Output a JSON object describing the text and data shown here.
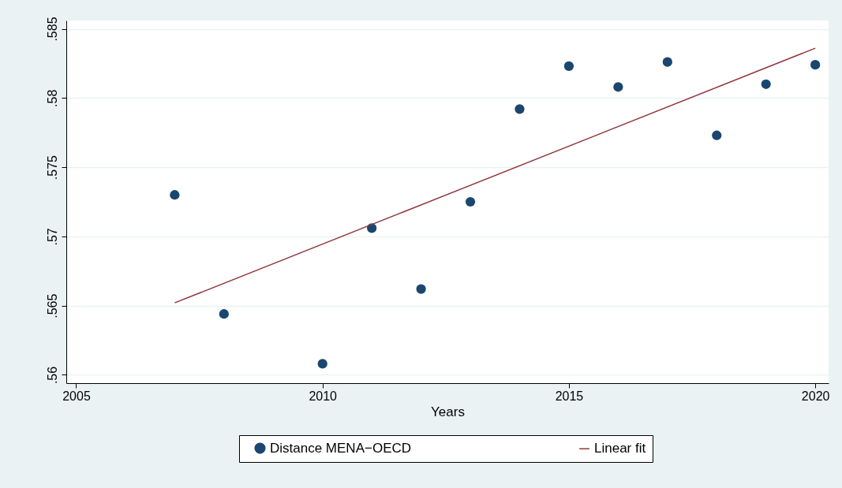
{
  "chart_data": {
    "type": "scatter",
    "xlabel": "Years",
    "grid": "y",
    "legend": "bottom",
    "xlim": [
      2004.8,
      2020.27
    ],
    "xticks": [
      2005,
      2010,
      2015,
      2020
    ],
    "ylim": [
      0.5594,
      0.5856
    ],
    "yticks": [
      {
        "value": 0.56,
        "label": ".56"
      },
      {
        "value": 0.565,
        "label": ".565"
      },
      {
        "value": 0.57,
        "label": ".57"
      },
      {
        "value": 0.575,
        "label": ".575"
      },
      {
        "value": 0.58,
        "label": ".58"
      },
      {
        "value": 0.585,
        "label": ".585"
      }
    ],
    "series": [
      {
        "name": "Distance MENA−OECD",
        "marker": "circle",
        "color": "#1a476f",
        "x": [
          2007,
          2008,
          2010,
          2011,
          2012,
          2013,
          2014,
          2015,
          2016,
          2017,
          2018,
          2019,
          2020
        ],
        "values": [
          0.573,
          0.5644,
          0.5608,
          0.5706,
          0.5662,
          0.5725,
          0.5792,
          0.5823,
          0.5808,
          0.5826,
          0.5773,
          0.581,
          0.5824
        ]
      },
      {
        "name": "Linear fit",
        "type": "line",
        "marker": "none",
        "color": "#90353b",
        "x": [
          2007,
          2020
        ],
        "values": [
          0.5652,
          0.5836
        ]
      }
    ]
  }
}
